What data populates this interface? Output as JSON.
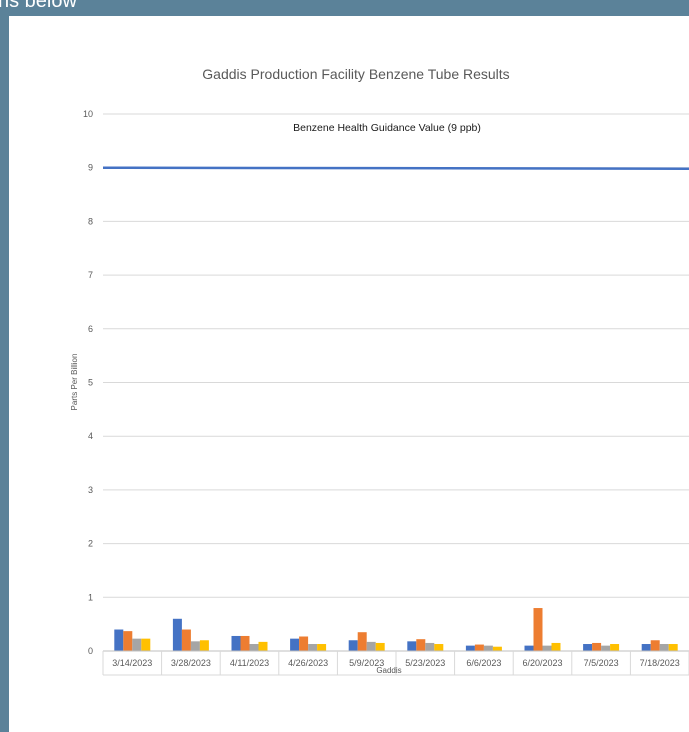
{
  "caption": "ns below",
  "chart_data": {
    "type": "bar",
    "title": "Gaddis Production Facility Benzene Tube Results",
    "xlabel": "Gaddis",
    "ylabel": "Parts Per Billion",
    "ylim": [
      0,
      10
    ],
    "yticks": [
      "0",
      "1",
      "2",
      "3",
      "4",
      "5",
      "6",
      "7",
      "8",
      "9",
      "10"
    ],
    "categories": [
      "3/14/2023",
      "3/28/2023",
      "4/11/2023",
      "4/26/2023",
      "5/9/2023",
      "5/23/2023",
      "6/6/2023",
      "6/20/2023",
      "7/5/2023",
      "7/18/2023"
    ],
    "series": [
      {
        "color": "#4472c4",
        "values": [
          0.4,
          0.6,
          0.28,
          0.23,
          0.2,
          0.18,
          0.1,
          0.1,
          0.13,
          0.13
        ]
      },
      {
        "color": "#ed7d31",
        "values": [
          0.37,
          0.4,
          0.28,
          0.27,
          0.35,
          0.22,
          0.12,
          0.8,
          0.15,
          0.2
        ]
      },
      {
        "color": "#a5a5a5",
        "values": [
          0.23,
          0.18,
          0.13,
          0.13,
          0.17,
          0.15,
          0.1,
          0.1,
          0.1,
          0.13
        ]
      },
      {
        "color": "#ffc000",
        "values": [
          0.23,
          0.2,
          0.17,
          0.13,
          0.15,
          0.13,
          0.08,
          0.15,
          0.13,
          0.13
        ]
      }
    ],
    "reference_line": {
      "value": 9,
      "label": "Benzene Health Guidance Value (9 ppb)",
      "color": "#4472c4"
    },
    "grid": true,
    "legend": "none"
  }
}
